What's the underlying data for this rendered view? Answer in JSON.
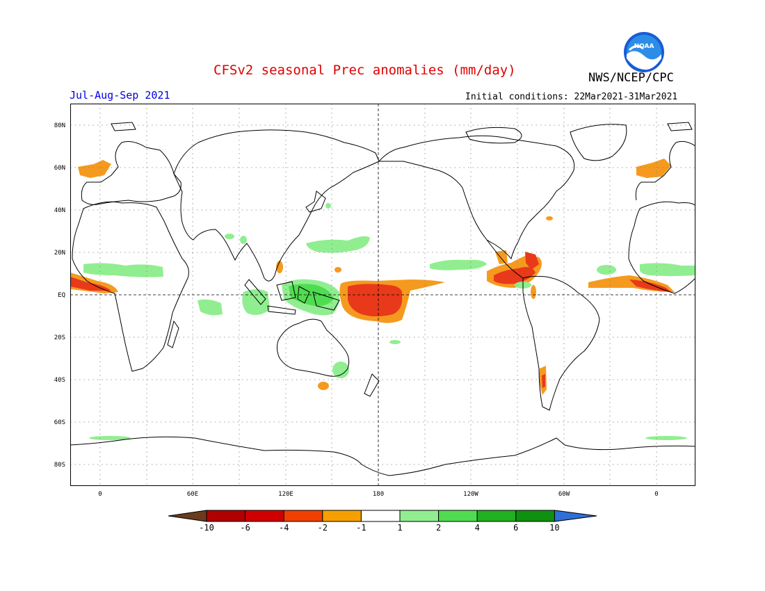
{
  "header": {
    "title": "CFSv2 seasonal Prec anomalies (mm/day)",
    "agency": "NWS/NCEP/CPC",
    "season": "Jul-Aug-Sep 2021",
    "initial_conditions": "Initial conditions: 22Mar2021-31Mar2021",
    "logo_text": "NOAA"
  },
  "map": {
    "lat_labels": [
      "80N",
      "60N",
      "40N",
      "20N",
      "EQ",
      "20S",
      "40S",
      "60S",
      "80S"
    ],
    "lon_labels": [
      "0",
      "60E",
      "120E",
      "180",
      "120W",
      "60W",
      "0"
    ]
  },
  "colorbar": {
    "labels": [
      "-10",
      "-6",
      "-4",
      "-2",
      "-1",
      "1",
      "2",
      "4",
      "6",
      "10"
    ],
    "colors": [
      "#6b3b1e",
      "#b00000",
      "#d00000",
      "#f04000",
      "#f5a000",
      "#ffffff",
      "#90ee90",
      "#50dc50",
      "#20b020",
      "#109010",
      "#2f6fd8"
    ]
  },
  "colors": {
    "title": "#e00000",
    "season": "#0000e0",
    "dry_strong": "#e8391a",
    "dry_mod": "#f59a1e",
    "wet_light": "#90ee90",
    "wet_mod": "#50dc50"
  }
}
